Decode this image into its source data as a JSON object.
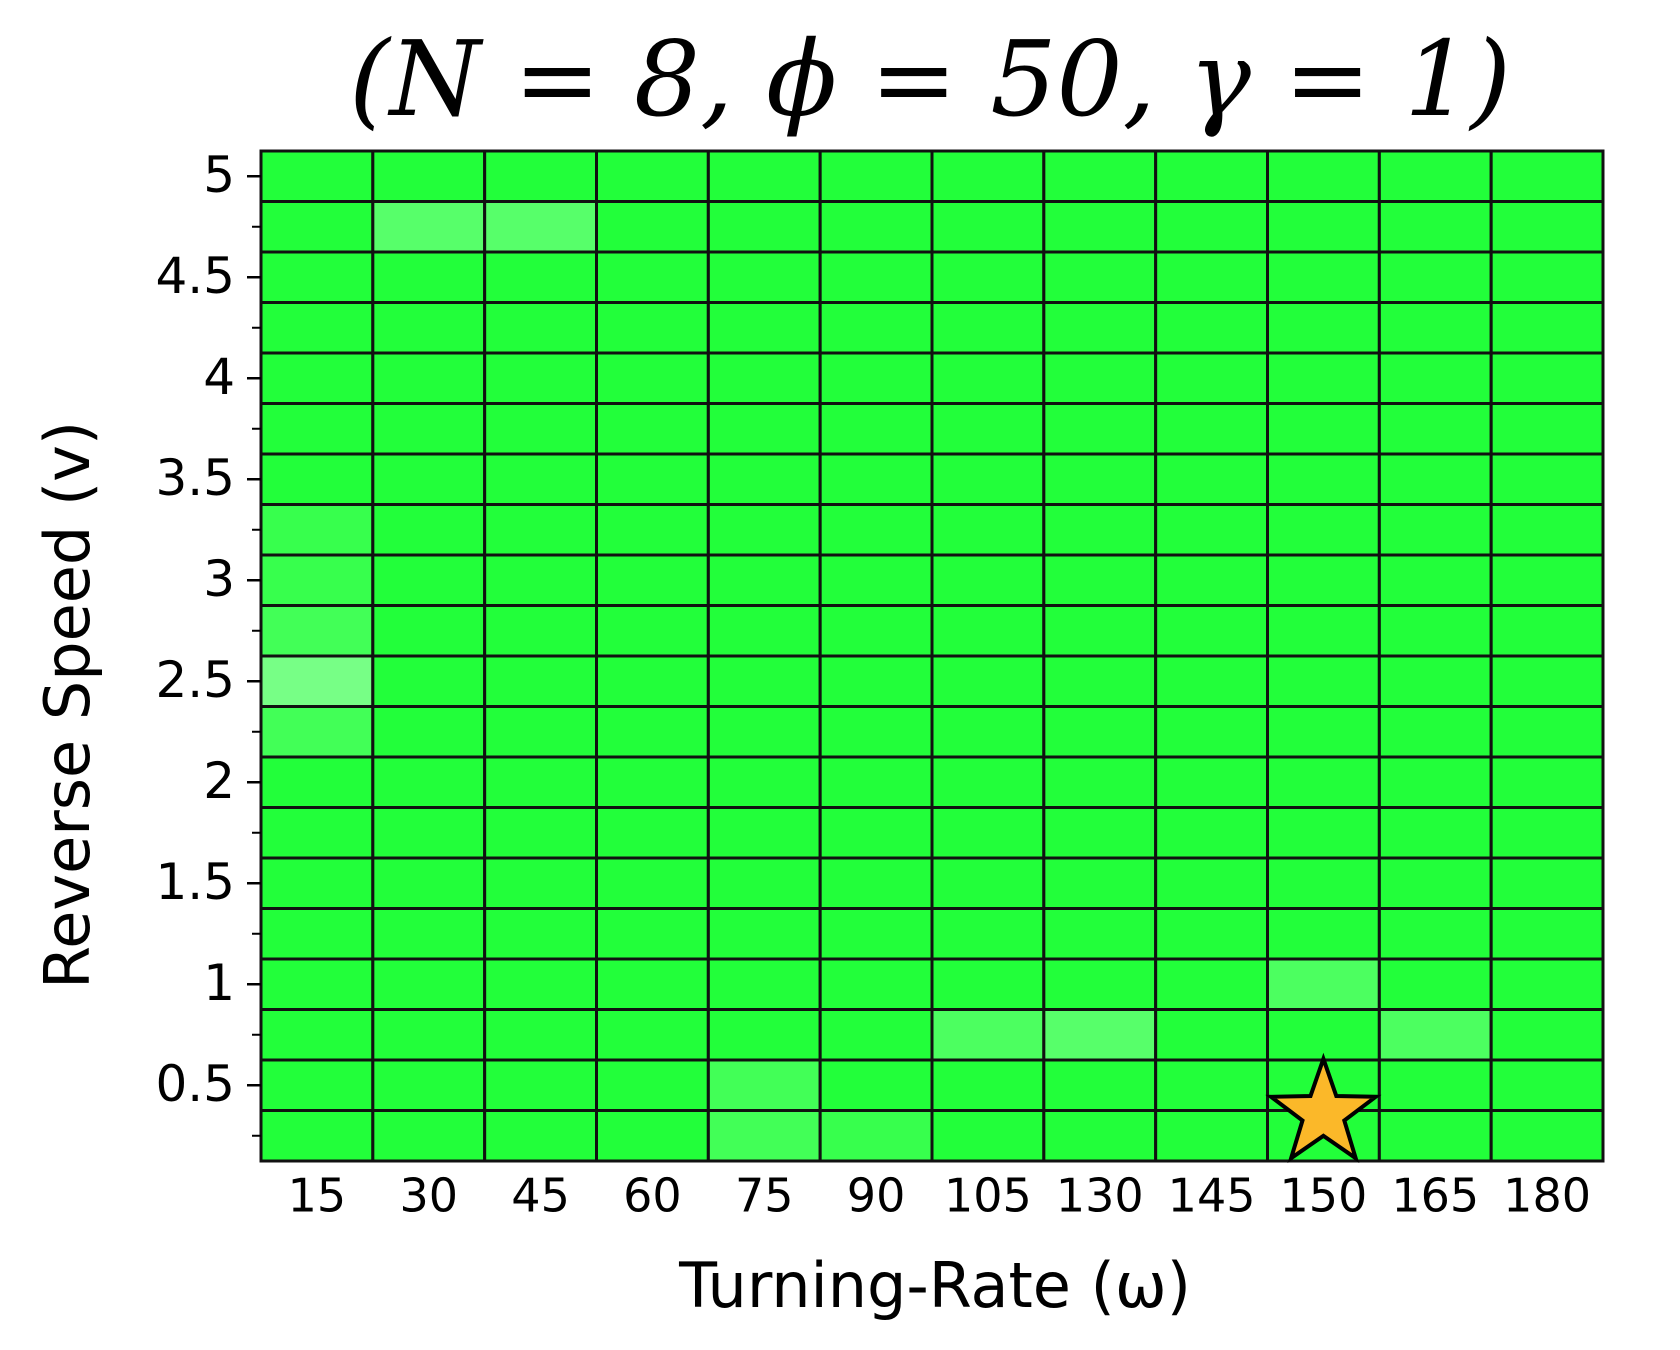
{
  "chart_data": {
    "type": "heatmap",
    "title": "(N = 8, ϕ = 50, γ = 1)",
    "x_label": "Turning-Rate (ω)",
    "y_label": "Reverse Speed (v)",
    "categories": [
      "15",
      "30",
      "45",
      "60",
      "75",
      "90",
      "105",
      "130",
      "145",
      "150",
      "165",
      "180"
    ],
    "y": [
      5,
      4.75,
      4.5,
      4.25,
      4,
      3.75,
      3.5,
      3.25,
      3,
      2.75,
      2.5,
      2.25,
      2,
      1.75,
      1.5,
      1.25,
      1,
      0.75,
      0.5,
      0.25
    ],
    "values": [
      [
        1,
        1,
        1,
        1,
        1,
        1,
        1,
        1,
        1,
        1,
        1,
        1
      ],
      [
        1,
        0.5,
        0.5,
        1,
        1,
        1,
        1,
        1,
        1,
        1,
        1,
        1
      ],
      [
        1,
        1,
        1,
        1,
        1,
        1,
        1,
        1,
        1,
        1,
        1,
        1
      ],
      [
        1,
        1,
        1,
        1,
        1,
        1,
        1,
        1,
        1,
        1,
        1,
        1
      ],
      [
        1,
        1,
        1,
        1,
        1,
        1,
        1,
        1,
        1,
        1,
        1,
        1
      ],
      [
        1,
        1,
        1,
        1,
        1,
        1,
        1,
        1,
        1,
        1,
        1,
        1
      ],
      [
        1,
        1,
        1,
        1,
        1,
        1,
        1,
        1,
        1,
        1,
        1,
        1
      ],
      [
        0.8,
        1,
        1,
        1,
        1,
        1,
        1,
        1,
        1,
        1,
        1,
        1
      ],
      [
        0.8,
        1,
        1,
        1,
        1,
        1,
        1,
        1,
        1,
        1,
        1,
        1
      ],
      [
        0.7,
        1,
        1,
        1,
        1,
        1,
        1,
        1,
        1,
        1,
        1,
        1
      ],
      [
        0.2,
        1,
        1,
        1,
        1,
        1,
        1,
        1,
        1,
        1,
        1,
        1
      ],
      [
        0.7,
        1,
        1,
        1,
        1,
        1,
        1,
        1,
        1,
        1,
        1,
        1
      ],
      [
        1,
        1,
        1,
        1,
        1,
        1,
        1,
        1,
        1,
        1,
        1,
        1
      ],
      [
        1,
        1,
        1,
        1,
        1,
        1,
        1,
        1,
        1,
        1,
        1,
        1
      ],
      [
        1,
        1,
        1,
        1,
        1,
        1,
        1,
        1,
        1,
        1,
        1,
        1
      ],
      [
        1,
        1,
        1,
        1,
        1,
        1,
        1,
        1,
        1,
        1,
        1,
        1
      ],
      [
        1,
        1,
        1,
        1,
        1,
        1,
        1,
        1,
        1,
        0.6,
        1,
        1
      ],
      [
        1,
        1,
        1,
        1,
        1,
        1,
        0.6,
        0.5,
        1,
        1,
        0.6,
        1
      ],
      [
        1,
        1,
        1,
        1,
        0.7,
        1,
        1,
        1,
        1,
        1,
        1,
        1
      ],
      [
        1,
        1,
        1,
        1,
        0.7,
        0.8,
        1,
        1,
        1,
        1,
        1,
        1
      ]
    ],
    "vlim": [
      0,
      1
    ],
    "color_low": "#8cff99",
    "color_high": "#22ff3a",
    "cell_border": "#111111",
    "ylim": [
      0.125,
      5.125
    ],
    "yticks": [
      5,
      4.5,
      4,
      3.5,
      3,
      2.5,
      2,
      1.5,
      1,
      0.5
    ],
    "yminorticks": [
      4.75,
      4.25,
      3.75,
      3.25,
      2.75,
      2.25,
      1.75,
      1.25,
      0.75,
      0.25
    ],
    "marker": {
      "x": "150",
      "y": 0.25,
      "color": "#fbb829"
    }
  }
}
